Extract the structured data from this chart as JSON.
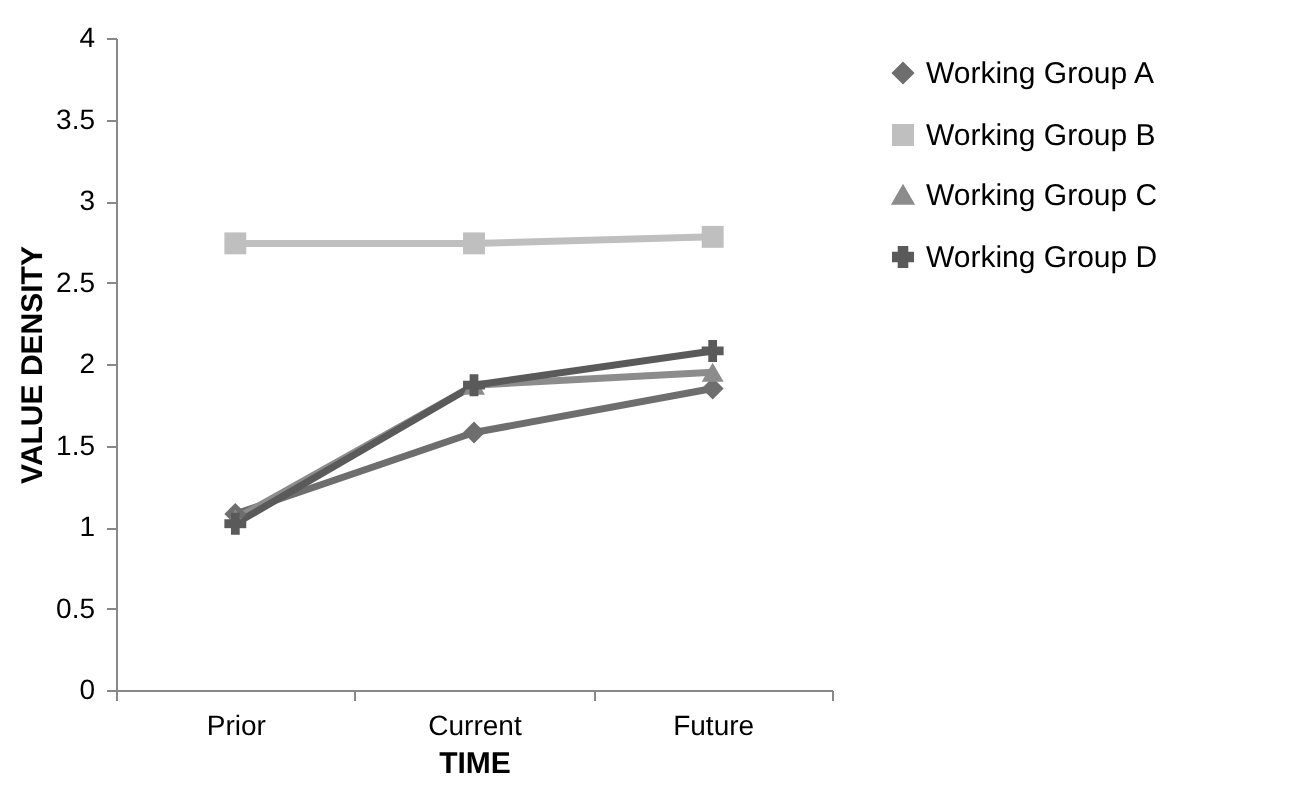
{
  "chart_data": {
    "type": "line",
    "xlabel": "TIME",
    "ylabel": "VALUE DENSITY",
    "categories": [
      "Prior",
      "Current",
      "Future"
    ],
    "ylim": [
      0,
      4
    ],
    "yticks": [
      0,
      0.5,
      1,
      1.5,
      2,
      2.5,
      3,
      3.5,
      4
    ],
    "grid": false,
    "legend": "right",
    "series": [
      {
        "name": "Working Group A",
        "color": "#6e6e6e",
        "marker": "diamond",
        "values": [
          1.08,
          1.58,
          1.85
        ]
      },
      {
        "name": "Working Group B",
        "color": "#bfbfbf",
        "marker": "square",
        "values": [
          2.74,
          2.74,
          2.78
        ]
      },
      {
        "name": "Working Group C",
        "color": "#8c8c8c",
        "marker": "triangle",
        "values": [
          1.05,
          1.87,
          1.95
        ]
      },
      {
        "name": "Working Group D",
        "color": "#5a5a5a",
        "marker": "cross",
        "values": [
          1.02,
          1.87,
          2.08
        ]
      }
    ]
  }
}
